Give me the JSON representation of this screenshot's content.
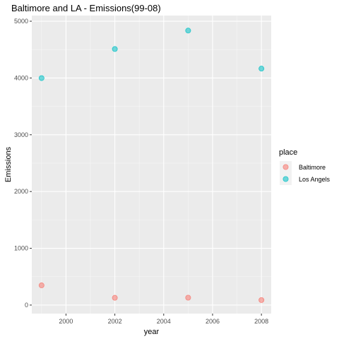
{
  "chart_data": {
    "type": "scatter",
    "title": "Baltimore and LA - Emissions(99-08)",
    "xlabel": "year",
    "ylabel": "Emissions",
    "xlim": [
      1998.6,
      2008.4
    ],
    "ylim": [
      -150,
      5100
    ],
    "x_ticks": [
      2000,
      2002,
      2004,
      2006,
      2008
    ],
    "y_ticks": [
      0,
      1000,
      2000,
      3000,
      4000,
      5000
    ],
    "grid": true,
    "legend_title": "place",
    "legend_position": "right",
    "series": [
      {
        "name": "Baltimore",
        "color": "#F8766D",
        "x": [
          1999,
          2002,
          2005,
          2008
        ],
        "y": [
          347,
          128,
          130,
          88
        ]
      },
      {
        "name": "Los Angels",
        "color": "#00BFC4",
        "x": [
          1999,
          2002,
          2005,
          2008
        ],
        "y": [
          3998,
          4510,
          4835,
          4165
        ]
      }
    ]
  }
}
